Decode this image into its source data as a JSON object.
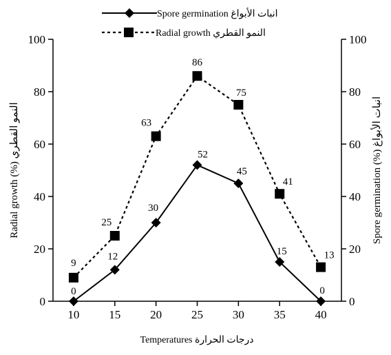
{
  "chart_data": {
    "type": "line",
    "title": "",
    "x": [
      10,
      15,
      20,
      25,
      30,
      35,
      40
    ],
    "xlabel": "Temperatures درجات الحرارة",
    "ylabel_left": "Radial growth (%) النمو القطري",
    "ylabel_right": "Spore germination (%) انبات الأبواغ",
    "ylim": [
      0,
      100
    ],
    "xlim": [
      7.5,
      42.5
    ],
    "yticks": [
      0,
      20,
      40,
      60,
      80,
      100
    ],
    "xticks": [
      10,
      15,
      20,
      25,
      30,
      35,
      40
    ],
    "grid": false,
    "legend_position": "top-center",
    "series": [
      {
        "name": "Spore germination انبات الأبواغ",
        "values": [
          0,
          12,
          30,
          52,
          45,
          15,
          0
        ],
        "labels": [
          "0",
          "12",
          "30",
          "52",
          "45",
          "15",
          "0"
        ],
        "style": "solid",
        "marker": "diamond",
        "color": "#000000"
      },
      {
        "name": "Radial growth النمو القطري",
        "values": [
          9,
          25,
          63,
          86,
          75,
          41,
          13
        ],
        "labels": [
          "9",
          "25",
          "63",
          "86",
          "75",
          "41",
          "13"
        ],
        "style": "dotted",
        "marker": "square",
        "color": "#000000"
      }
    ]
  }
}
